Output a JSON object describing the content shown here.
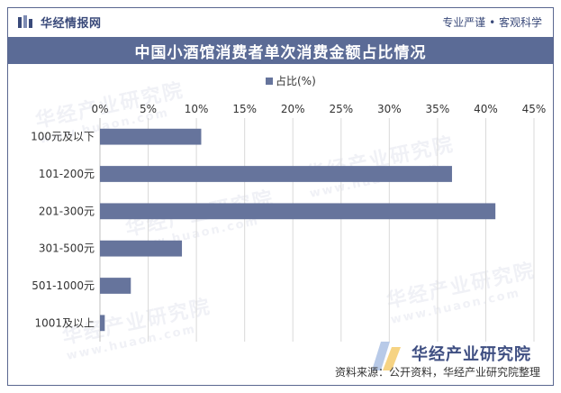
{
  "header": {
    "brand_name": "华经情报网",
    "slogan": "专业严谨 • 客观科学"
  },
  "watermark": {
    "name": "华经产业研究院",
    "url": "www.huaon.com"
  },
  "footer": {
    "source": "资料来源：公开资料，华经产业研究院整理",
    "logo_name": "华经产业研究院"
  },
  "colors": {
    "bar": "#66749c",
    "title_bg": "#5b6b96",
    "grid": "#d9d9d9"
  },
  "chart_data": {
    "type": "bar",
    "orientation": "horizontal",
    "title": "中国小酒馆消费者单次消费金额占比情况",
    "categories": [
      "100元及以下",
      "101-200元",
      "201-300元",
      "301-500元",
      "501-1000元",
      "1001及以上"
    ],
    "series": [
      {
        "name": "占比(%)",
        "values": [
          10.5,
          36.5,
          41.0,
          8.5,
          3.2,
          0.5
        ]
      }
    ],
    "xlim": [
      0,
      45
    ],
    "xticks": [
      "0%",
      "5%",
      "10%",
      "15%",
      "20%",
      "25%",
      "30%",
      "35%",
      "40%",
      "45%"
    ],
    "grid": true,
    "legend": "top-center"
  }
}
